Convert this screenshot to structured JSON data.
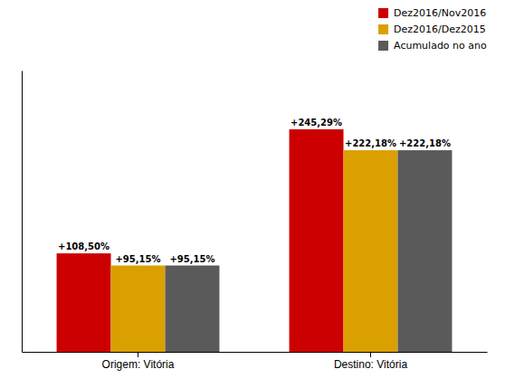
{
  "chart_data": {
    "type": "bar",
    "categories": [
      "Origem: Vitória",
      "Destino: Vitória"
    ],
    "series": [
      {
        "name": "Dez2016/Nov2016",
        "color": "#CC0000",
        "values": [
          108.5,
          245.29
        ],
        "value_labels": [
          "+108,50%",
          "+245,29%"
        ]
      },
      {
        "name": "Dez2016/Dez2015",
        "color": "#DAA000",
        "values": [
          95.15,
          222.18
        ],
        "value_labels": [
          "+95,15%",
          "+222,18%"
        ]
      },
      {
        "name": "Acumulado no ano",
        "color": "#5A5A5A",
        "values": [
          95.15,
          222.18
        ],
        "value_labels": [
          "+95,15%",
          "+222,18%"
        ]
      }
    ],
    "ylim": [
      0,
      310
    ],
    "data_labels": true,
    "tick_labels": "x",
    "legend": "upper right"
  }
}
